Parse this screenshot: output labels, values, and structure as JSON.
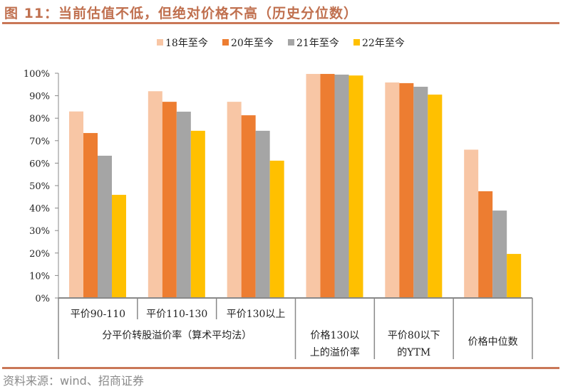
{
  "title": "图 11：当前估值不低，但绝对价格不高（历史分位数）",
  "source": "资料来源：wind、招商证券",
  "chart_data": {
    "type": "bar",
    "title": "图 11：当前估值不低，但绝对价格不高（历史分位数）",
    "ylim": [
      0,
      100
    ],
    "yticks": [
      "0%",
      "10%",
      "20%",
      "30%",
      "40%",
      "50%",
      "60%",
      "70%",
      "80%",
      "90%",
      "100%"
    ],
    "legend_position": "top",
    "categories": [
      "平价90-110",
      "平价110-130",
      "平价130以上",
      "价格130以上的溢价率",
      "平价80以下的YTM",
      "价格中位数"
    ],
    "category_labels": [
      [
        "平价90-110"
      ],
      [
        "平价110-130"
      ],
      [
        "平价130以上"
      ],
      [
        "价格130以",
        "上的溢价率"
      ],
      [
        "平价80以下",
        "的YTM"
      ],
      [
        "价格中位数"
      ]
    ],
    "group_label": "分平价转股溢价率（算术平均法）",
    "series": [
      {
        "name": "18年至今",
        "color": "#f8c6a5",
        "values": [
          83,
          92,
          87.3,
          99.7,
          95.9,
          66
        ]
      },
      {
        "name": "20年至今",
        "color": "#ed7d31",
        "values": [
          73.4,
          87.3,
          81.3,
          99.7,
          95.6,
          47.5
        ]
      },
      {
        "name": "21年至今",
        "color": "#a5a5a5",
        "values": [
          63.3,
          82.9,
          74.4,
          99.4,
          94,
          38.9
        ]
      },
      {
        "name": "22年至今",
        "color": "#ffc000",
        "values": [
          45.9,
          74.4,
          61.1,
          99,
          90.5,
          19.6
        ]
      }
    ]
  }
}
